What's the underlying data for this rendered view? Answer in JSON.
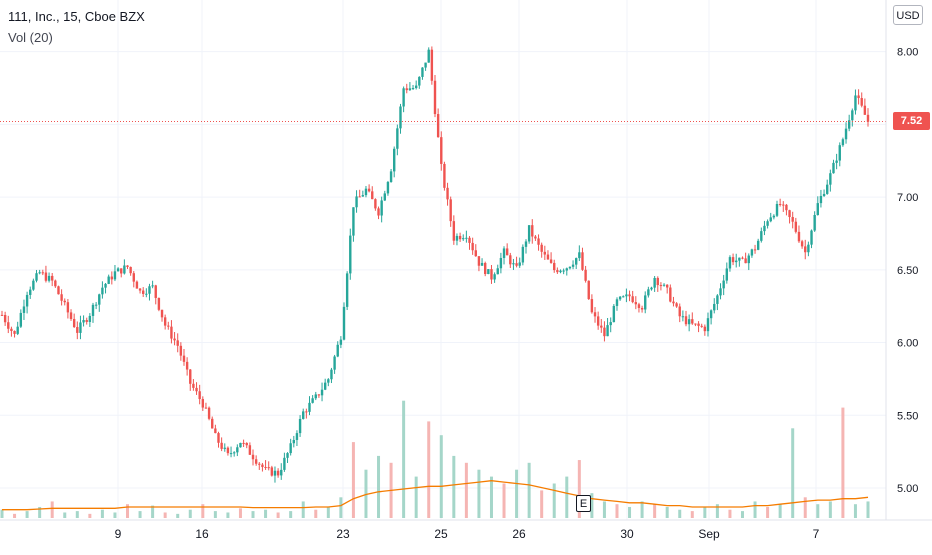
{
  "legend": {
    "title": "111, Inc., 15, Cboe BZX",
    "volume_indicator": "Vol (20)"
  },
  "currency": "USD",
  "last_price_label": "7.52",
  "earnings_marker": "E",
  "colors": {
    "up": "#26a69a",
    "down": "#ef5350",
    "up_volume": "#a5d6c9",
    "down_volume": "#f5b5b3",
    "volume_ma": "#f57c00",
    "grid": "#f0f3fa",
    "price_line": "#ef5350"
  },
  "chart_data": {
    "type": "candlestick",
    "title": "111, Inc., 15, Cboe BZX",
    "y_axis_ticks": [
      "8.00",
      "7.50",
      "7.00",
      "6.50",
      "6.00",
      "5.50",
      "5.00"
    ],
    "x_axis_ticks": [
      "9",
      "16",
      "23",
      "25",
      "26",
      "30",
      "Sep",
      "7"
    ],
    "ylim": [
      4.78,
      8.3
    ],
    "last_price": 7.52,
    "grid": true,
    "series_close": [
      [
        0,
        6.19
      ],
      [
        4,
        6.05
      ],
      [
        8,
        6.35
      ],
      [
        12,
        6.48
      ],
      [
        16,
        6.42
      ],
      [
        20,
        6.25
      ],
      [
        24,
        6.08
      ],
      [
        28,
        6.2
      ],
      [
        32,
        6.38
      ],
      [
        36,
        6.48
      ],
      [
        40,
        6.52
      ],
      [
        44,
        6.35
      ],
      [
        48,
        6.38
      ],
      [
        52,
        6.12
      ],
      [
        56,
        5.98
      ],
      [
        60,
        5.72
      ],
      [
        64,
        5.58
      ],
      [
        68,
        5.35
      ],
      [
        72,
        5.22
      ],
      [
        76,
        5.32
      ],
      [
        80,
        5.22
      ],
      [
        84,
        5.12
      ],
      [
        88,
        5.1
      ],
      [
        92,
        5.28
      ],
      [
        96,
        5.52
      ],
      [
        100,
        5.62
      ],
      [
        104,
        5.75
      ],
      [
        108,
        6.05
      ],
      [
        112,
        6.95
      ],
      [
        116,
        7.05
      ],
      [
        120,
        6.9
      ],
      [
        124,
        7.2
      ],
      [
        128,
        7.75
      ],
      [
        132,
        7.75
      ],
      [
        136,
        8.0
      ],
      [
        140,
        7.2
      ],
      [
        144,
        6.72
      ],
      [
        148,
        6.75
      ],
      [
        152,
        6.55
      ],
      [
        156,
        6.45
      ],
      [
        160,
        6.62
      ],
      [
        164,
        6.5
      ],
      [
        168,
        6.78
      ],
      [
        172,
        6.62
      ],
      [
        176,
        6.5
      ],
      [
        180,
        6.52
      ],
      [
        184,
        6.6
      ],
      [
        188,
        6.2
      ],
      [
        192,
        6.05
      ],
      [
        196,
        6.28
      ],
      [
        200,
        6.32
      ],
      [
        204,
        6.25
      ],
      [
        208,
        6.45
      ],
      [
        212,
        6.35
      ],
      [
        216,
        6.18
      ],
      [
        220,
        6.12
      ],
      [
        224,
        6.1
      ],
      [
        228,
        6.32
      ],
      [
        232,
        6.58
      ],
      [
        236,
        6.55
      ],
      [
        240,
        6.65
      ],
      [
        244,
        6.85
      ],
      [
        248,
        6.95
      ],
      [
        252,
        6.82
      ],
      [
        256,
        6.62
      ],
      [
        260,
        6.95
      ],
      [
        264,
        7.15
      ],
      [
        268,
        7.4
      ],
      [
        272,
        7.7
      ],
      [
        276,
        7.52
      ]
    ],
    "volume_bar_heights": [
      0.06,
      0.03,
      0.05,
      0.08,
      0.12,
      0.04,
      0.05,
      0.03,
      0.06,
      0.04,
      0.1,
      0.05,
      0.09,
      0.04,
      0.03,
      0.06,
      0.1,
      0.05,
      0.04,
      0.07,
      0.05,
      0.06,
      0.04,
      0.05,
      0.12,
      0.06,
      0.08,
      0.15,
      0.55,
      0.35,
      0.45,
      0.4,
      0.85,
      0.3,
      0.7,
      0.6,
      0.45,
      0.4,
      0.35,
      0.3,
      0.25,
      0.35,
      0.4,
      0.2,
      0.25,
      0.3,
      0.42,
      0.18,
      0.12,
      0.1,
      0.08,
      0.12,
      0.1,
      0.08,
      0.06,
      0.05,
      0.08,
      0.1,
      0.06,
      0.05,
      0.12,
      0.08,
      0.1,
      0.65,
      0.15,
      0.1,
      0.12,
      0.8,
      0.1,
      0.12
    ],
    "volume_ma": [
      0.06,
      0.06,
      0.06,
      0.065,
      0.07,
      0.07,
      0.07,
      0.07,
      0.07,
      0.07,
      0.08,
      0.08,
      0.08,
      0.08,
      0.08,
      0.08,
      0.08,
      0.08,
      0.08,
      0.08,
      0.075,
      0.075,
      0.075,
      0.075,
      0.075,
      0.08,
      0.08,
      0.09,
      0.14,
      0.17,
      0.19,
      0.2,
      0.21,
      0.22,
      0.23,
      0.23,
      0.24,
      0.25,
      0.26,
      0.27,
      0.26,
      0.25,
      0.24,
      0.22,
      0.2,
      0.18,
      0.16,
      0.14,
      0.13,
      0.12,
      0.11,
      0.11,
      0.1,
      0.09,
      0.09,
      0.08,
      0.08,
      0.08,
      0.08,
      0.08,
      0.09,
      0.09,
      0.1,
      0.11,
      0.12,
      0.13,
      0.13,
      0.14,
      0.14,
      0.15
    ]
  }
}
